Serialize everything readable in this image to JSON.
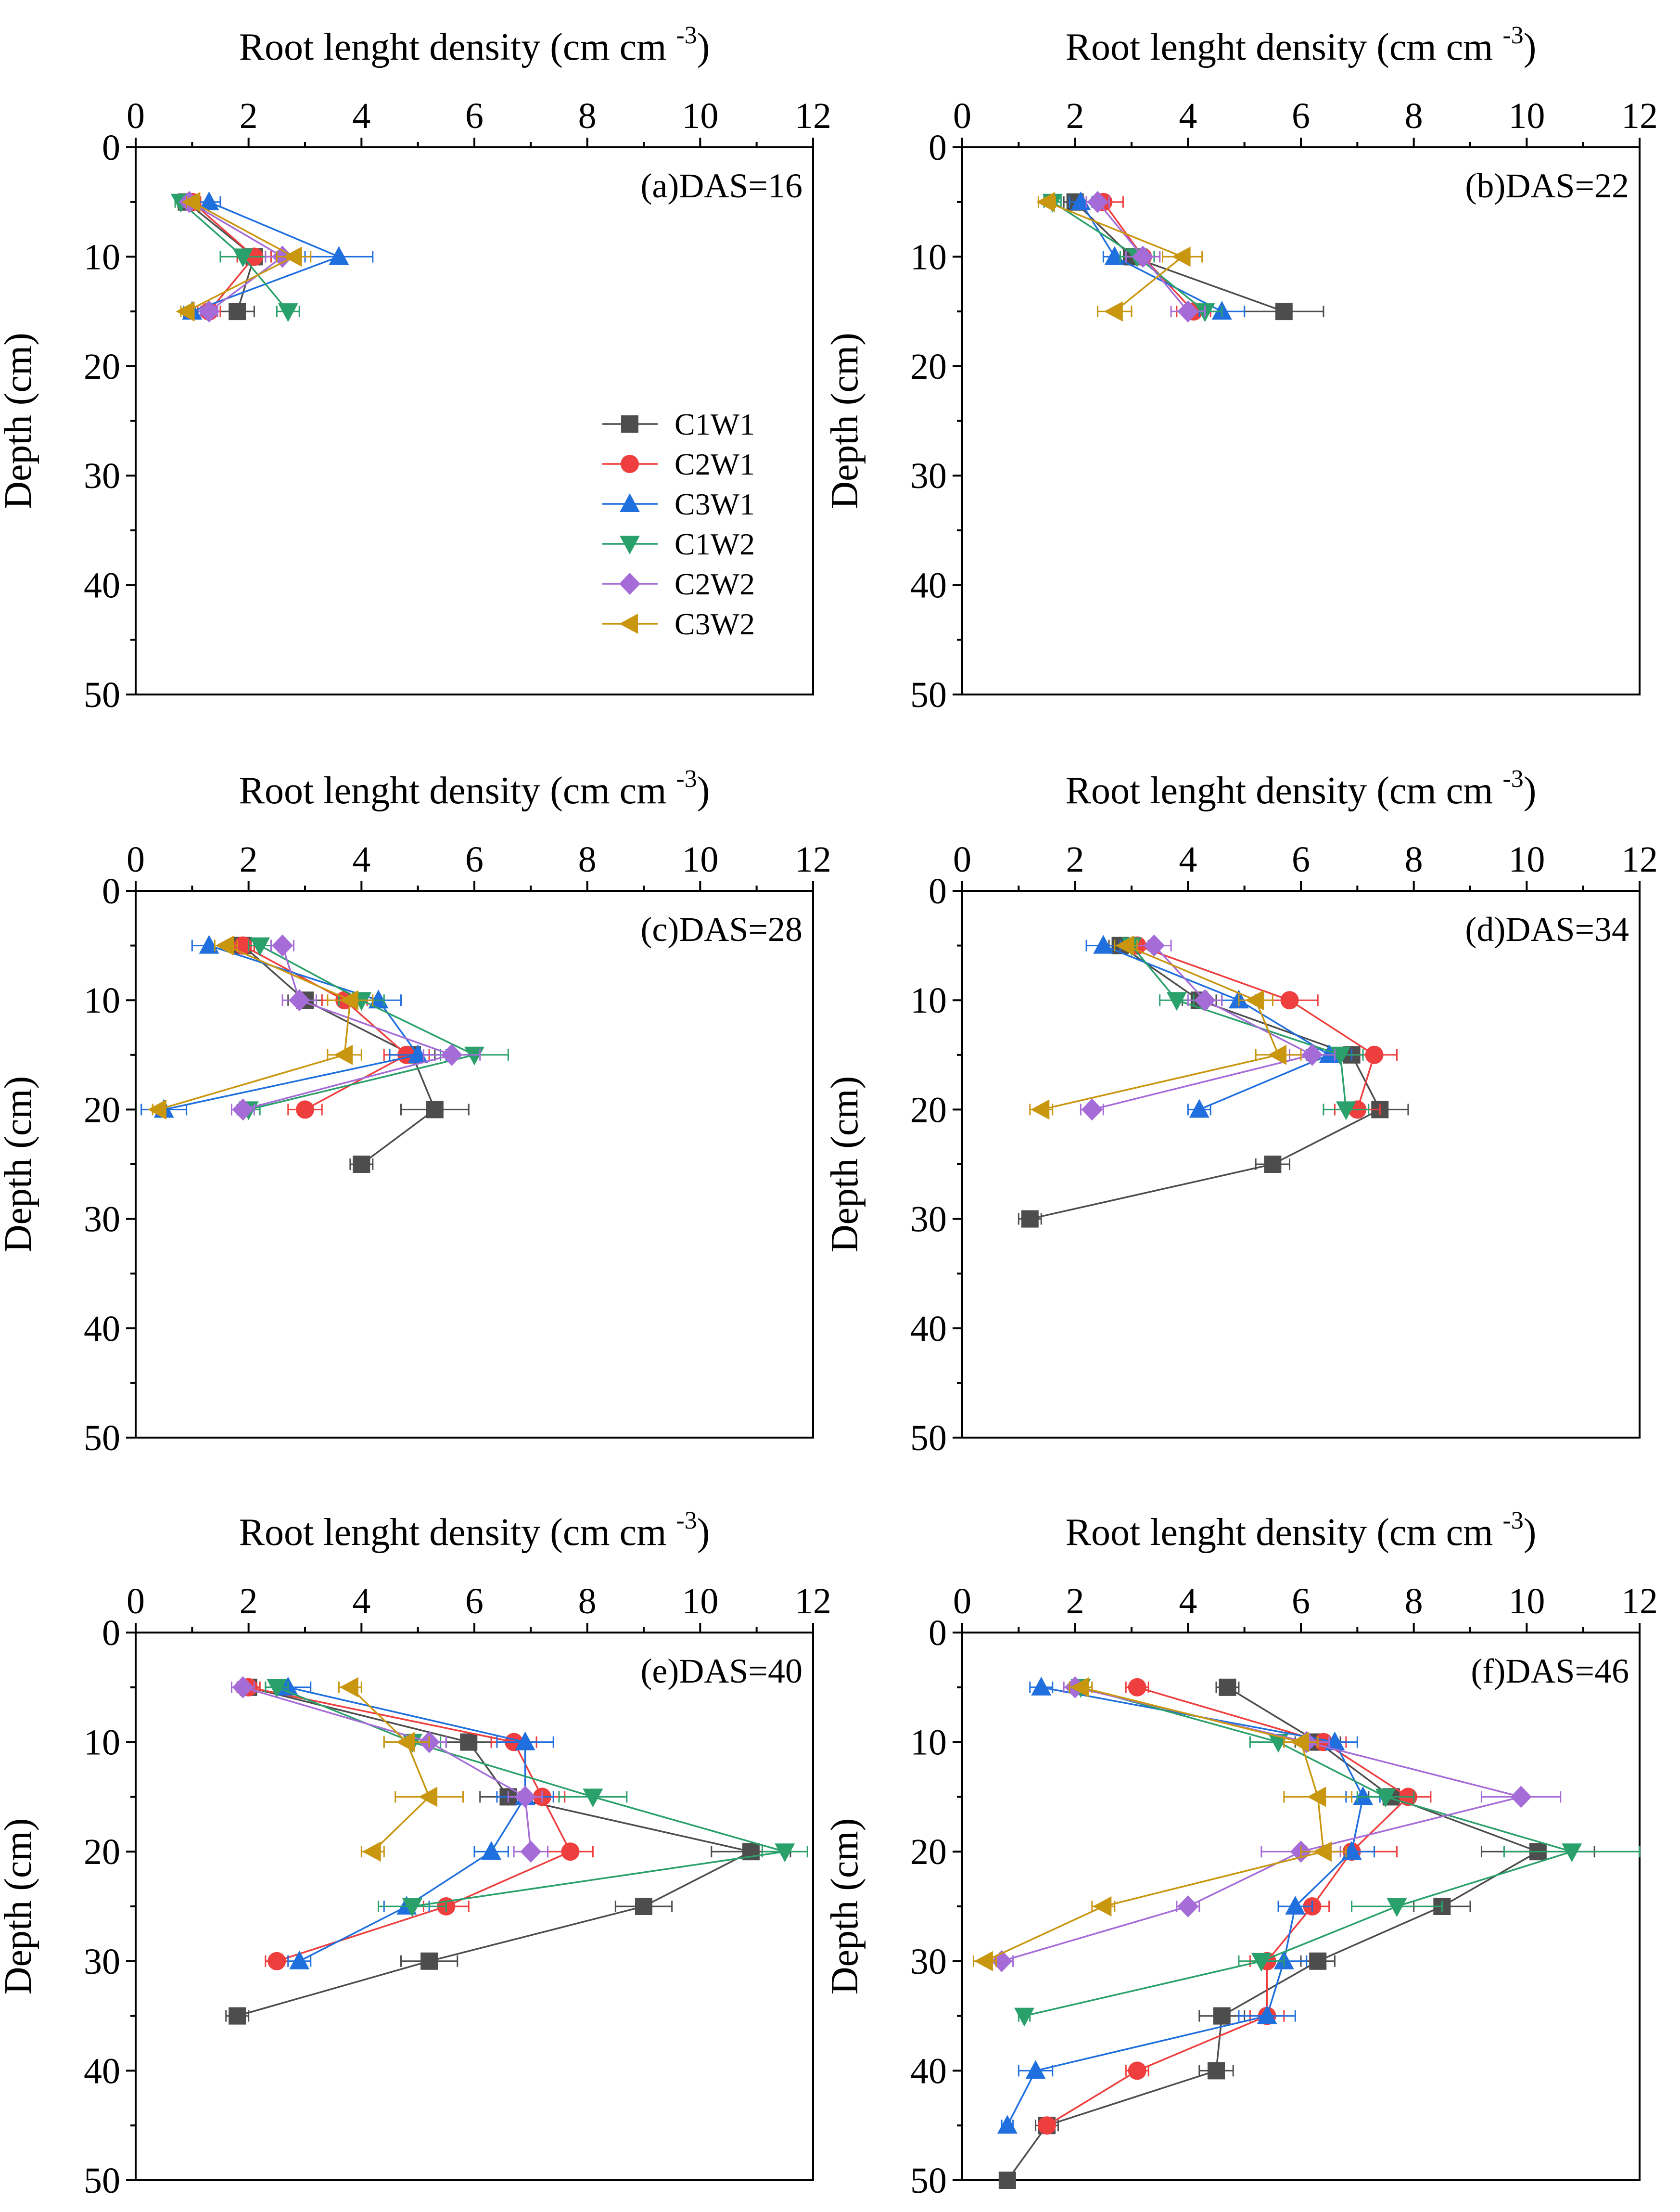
{
  "chart_data": {
    "type": "line",
    "orientation": "vertical-profile",
    "xlabel": "Root lenght density (cm cm",
    "xlabel_sup": "-3",
    "xlabel_close": ")",
    "ylabel": "Depth (cm)",
    "xlim": [
      0,
      12
    ],
    "ylim": [
      0,
      50
    ],
    "x_ticks": [
      "0",
      "2",
      "4",
      "6",
      "8",
      "10",
      "12"
    ],
    "y_ticks": [
      "0",
      "10",
      "20",
      "30",
      "40",
      "50"
    ],
    "legend": {
      "position": "lower-right of panel (a)",
      "entries": [
        "C1W1",
        "C2W1",
        "C3W1",
        "C1W2",
        "C2W2",
        "C3W2"
      ]
    },
    "series_styles": [
      {
        "name": "C1W1",
        "color": "#4d4d4d",
        "marker": "square"
      },
      {
        "name": "C2W1",
        "color": "#ee3e3e",
        "marker": "circle"
      },
      {
        "name": "C3W1",
        "color": "#1f6fde",
        "marker": "triangle-up"
      },
      {
        "name": "C1W2",
        "color": "#2aa06b",
        "marker": "triangle-down"
      },
      {
        "name": "C2W2",
        "color": "#a56cd8",
        "marker": "diamond"
      },
      {
        "name": "C3W2",
        "color": "#c9960f",
        "marker": "triangle-left"
      }
    ],
    "panels": [
      {
        "label": "(a)DAS=16",
        "series": [
          {
            "name": "C1W1",
            "depth": [
              5,
              10,
              15
            ],
            "values": [
              0.9,
              2.1,
              1.8
            ],
            "err": [
              0.15,
              0.3,
              0.3
            ]
          },
          {
            "name": "C2W1",
            "depth": [
              5,
              10,
              15
            ],
            "values": [
              1.0,
              2.1,
              1.3
            ],
            "err": [
              0.15,
              0.3,
              0.2
            ]
          },
          {
            "name": "C3W1",
            "depth": [
              5,
              10,
              15
            ],
            "values": [
              1.3,
              3.6,
              1.0
            ],
            "err": [
              0.2,
              0.6,
              0.15
            ]
          },
          {
            "name": "C1W2",
            "depth": [
              5,
              10,
              15
            ],
            "values": [
              0.8,
              1.9,
              2.7
            ],
            "err": [
              0.1,
              0.4,
              0.2
            ]
          },
          {
            "name": "C2W2",
            "depth": [
              5,
              10,
              15
            ],
            "values": [
              0.95,
              2.6,
              1.3
            ],
            "err": [
              0.1,
              0.3,
              0.15
            ]
          },
          {
            "name": "C3W2",
            "depth": [
              5,
              10,
              15
            ],
            "values": [
              1.0,
              2.8,
              0.9
            ],
            "err": [
              0.1,
              0.3,
              0.1
            ]
          }
        ]
      },
      {
        "label": "(b)DAS=22",
        "series": [
          {
            "name": "C1W1",
            "depth": [
              5,
              10,
              15
            ],
            "values": [
              2.0,
              3.0,
              5.7
            ],
            "err": [
              0.2,
              0.3,
              0.7
            ]
          },
          {
            "name": "C2W1",
            "depth": [
              5,
              10,
              15
            ],
            "values": [
              2.5,
              3.2,
              4.1
            ],
            "err": [
              0.35,
              0.3,
              0.3
            ]
          },
          {
            "name": "C3W1",
            "depth": [
              5,
              10,
              15
            ],
            "values": [
              2.1,
              2.7,
              4.6
            ],
            "err": [
              0.2,
              0.2,
              0.4
            ]
          },
          {
            "name": "C1W2",
            "depth": [
              5,
              10,
              15
            ],
            "values": [
              1.6,
              3.1,
              4.3
            ],
            "err": [
              0.15,
              0.3,
              0.3
            ]
          },
          {
            "name": "C2W2",
            "depth": [
              5,
              10,
              15
            ],
            "values": [
              2.4,
              3.2,
              4.0
            ],
            "err": [
              0.2,
              0.3,
              0.3
            ]
          },
          {
            "name": "C3W2",
            "depth": [
              5,
              10,
              15
            ],
            "values": [
              1.5,
              3.9,
              2.7
            ],
            "err": [
              0.15,
              0.35,
              0.3
            ]
          }
        ]
      },
      {
        "label": "(c)DAS=28",
        "series": [
          {
            "name": "C1W1",
            "depth": [
              5,
              10,
              15,
              20,
              25
            ],
            "values": [
              1.9,
              3.0,
              4.9,
              5.3,
              4.0
            ],
            "err": [
              0.2,
              0.3,
              0.4,
              0.6,
              0.2
            ]
          },
          {
            "name": "C2W1",
            "depth": [
              5,
              10,
              15,
              20
            ],
            "values": [
              1.9,
              3.7,
              4.8,
              3.0
            ],
            "err": [
              0.2,
              0.4,
              0.4,
              0.3
            ]
          },
          {
            "name": "C3W1",
            "depth": [
              5,
              10,
              15,
              20
            ],
            "values": [
              1.3,
              4.3,
              5.0,
              0.5
            ],
            "err": [
              0.3,
              0.4,
              0.5,
              0.4
            ]
          },
          {
            "name": "C1W2",
            "depth": [
              5,
              10,
              15,
              20
            ],
            "values": [
              2.2,
              4.0,
              6.0,
              2.0
            ],
            "err": [
              0.2,
              0.4,
              0.6,
              0.2
            ]
          },
          {
            "name": "C2W2",
            "depth": [
              5,
              10,
              15,
              20
            ],
            "values": [
              2.6,
              2.9,
              5.6,
              1.9
            ],
            "err": [
              0.2,
              0.3,
              0.5,
              0.2
            ]
          },
          {
            "name": "C3W2",
            "depth": [
              5,
              10,
              15,
              20
            ],
            "values": [
              1.6,
              3.8,
              3.7,
              0.4
            ],
            "err": [
              0.2,
              0.4,
              0.3,
              0.1
            ]
          }
        ]
      },
      {
        "label": "(d)DAS=34",
        "series": [
          {
            "name": "C1W1",
            "depth": [
              5,
              10,
              15,
              20,
              25,
              30
            ],
            "values": [
              2.8,
              4.2,
              6.9,
              7.4,
              5.5,
              1.2
            ],
            "err": [
              0.2,
              0.3,
              0.4,
              0.5,
              0.3,
              0.2
            ]
          },
          {
            "name": "C2W1",
            "depth": [
              5,
              10,
              15,
              20
            ],
            "values": [
              3.1,
              5.8,
              7.3,
              7.0
            ],
            "err": [
              0.3,
              0.5,
              0.4,
              0.4
            ]
          },
          {
            "name": "C3W1",
            "depth": [
              5,
              10,
              15,
              20
            ],
            "values": [
              2.5,
              4.9,
              6.5,
              4.2
            ],
            "err": [
              0.3,
              0.3,
              0.4,
              0.2
            ]
          },
          {
            "name": "C1W2",
            "depth": [
              5,
              10,
              15,
              20
            ],
            "values": [
              3.0,
              3.8,
              6.7,
              6.8
            ],
            "err": [
              0.3,
              0.3,
              0.4,
              0.4
            ]
          },
          {
            "name": "C2W2",
            "depth": [
              5,
              10,
              15,
              20
            ],
            "values": [
              3.4,
              4.3,
              6.2,
              2.3
            ],
            "err": [
              0.3,
              0.3,
              0.4,
              0.2
            ]
          },
          {
            "name": "C3W2",
            "depth": [
              5,
              10,
              15,
              20
            ],
            "values": [
              2.9,
              5.2,
              5.6,
              1.4
            ],
            "err": [
              0.2,
              0.3,
              0.4,
              0.2
            ]
          }
        ]
      },
      {
        "label": "(e)DAS=40",
        "series": [
          {
            "name": "C1W1",
            "depth": [
              5,
              10,
              15,
              20,
              25,
              30,
              35
            ],
            "values": [
              2.0,
              5.9,
              6.6,
              10.9,
              9.0,
              5.2,
              1.8
            ],
            "err": [
              0.2,
              0.4,
              0.5,
              0.7,
              0.5,
              0.5,
              0.2
            ]
          },
          {
            "name": "C2W1",
            "depth": [
              5,
              10,
              15,
              20,
              25,
              30
            ],
            "values": [
              2.0,
              6.7,
              7.2,
              7.7,
              5.5,
              2.5
            ],
            "err": [
              0.2,
              0.4,
              0.4,
              0.4,
              0.4,
              0.2
            ]
          },
          {
            "name": "C3W1",
            "depth": [
              5,
              10,
              15,
              20,
              25,
              30
            ],
            "values": [
              2.7,
              6.9,
              6.9,
              6.3,
              4.8,
              2.9
            ],
            "err": [
              0.4,
              0.5,
              0.5,
              0.3,
              0.4,
              0.2
            ]
          },
          {
            "name": "C1W2",
            "depth": [
              5,
              10,
              15,
              20,
              25
            ],
            "values": [
              2.5,
              4.9,
              8.1,
              11.5,
              4.9
            ],
            "err": [
              0.2,
              0.5,
              0.6,
              0.4,
              0.6
            ]
          },
          {
            "name": "C2W2",
            "depth": [
              5,
              10,
              15,
              20
            ],
            "values": [
              1.9,
              5.2,
              6.9,
              7.0
            ],
            "err": [
              0.2,
              0.3,
              0.3,
              0.3
            ]
          },
          {
            "name": "C3W2",
            "depth": [
              5,
              10,
              15,
              20
            ],
            "values": [
              3.8,
              4.8,
              5.2,
              4.2
            ],
            "err": [
              0.2,
              0.4,
              0.6,
              0.2
            ]
          }
        ]
      },
      {
        "label": "(f)DAS=46",
        "series": [
          {
            "name": "C1W1",
            "depth": [
              5,
              10,
              15,
              20,
              25,
              30,
              35,
              40,
              45,
              50
            ],
            "values": [
              4.7,
              6.3,
              7.6,
              10.2,
              8.5,
              6.3,
              4.6,
              4.5,
              1.5,
              0.8
            ],
            "err": [
              0.2,
              0.4,
              0.4,
              1.0,
              0.5,
              0.3,
              0.4,
              0.3,
              0.2,
              0.1
            ]
          },
          {
            "name": "C2W1",
            "depth": [
              5,
              10,
              15,
              20,
              25,
              30,
              35,
              40,
              45
            ],
            "values": [
              3.1,
              6.4,
              7.9,
              6.9,
              6.2,
              5.4,
              5.4,
              3.1,
              1.5
            ],
            "err": [
              0.2,
              0.4,
              0.4,
              0.8,
              0.3,
              0.3,
              0.3,
              0.2,
              0.1
            ]
          },
          {
            "name": "C3W1",
            "depth": [
              5,
              10,
              15,
              20,
              25,
              30,
              35,
              40,
              45
            ],
            "values": [
              1.4,
              6.6,
              7.1,
              6.9,
              5.9,
              5.7,
              5.4,
              1.3,
              0.8
            ],
            "err": [
              0.2,
              0.4,
              0.3,
              0.4,
              0.3,
              0.4,
              0.5,
              0.3,
              0.1
            ]
          },
          {
            "name": "C1W2",
            "depth": [
              5,
              10,
              15,
              20,
              25,
              30,
              35
            ],
            "values": [
              2.1,
              5.6,
              7.5,
              10.8,
              7.7,
              5.3,
              1.1
            ],
            "err": [
              0.2,
              0.5,
              0.5,
              1.2,
              0.8,
              0.4,
              0.1
            ]
          },
          {
            "name": "C2W2",
            "depth": [
              5,
              10,
              15,
              20,
              25,
              30
            ],
            "values": [
              2.0,
              6.1,
              9.9,
              6.0,
              4.0,
              0.7
            ],
            "err": [
              0.2,
              0.4,
              0.7,
              0.7,
              0.2,
              0.2
            ]
          },
          {
            "name": "C3W2",
            "depth": [
              5,
              10,
              15,
              20,
              25,
              30
            ],
            "values": [
              2.1,
              6.0,
              6.3,
              6.4,
              2.5,
              0.4
            ],
            "err": [
              0.2,
              0.3,
              0.6,
              0.4,
              0.2,
              0.2
            ]
          }
        ]
      }
    ]
  }
}
